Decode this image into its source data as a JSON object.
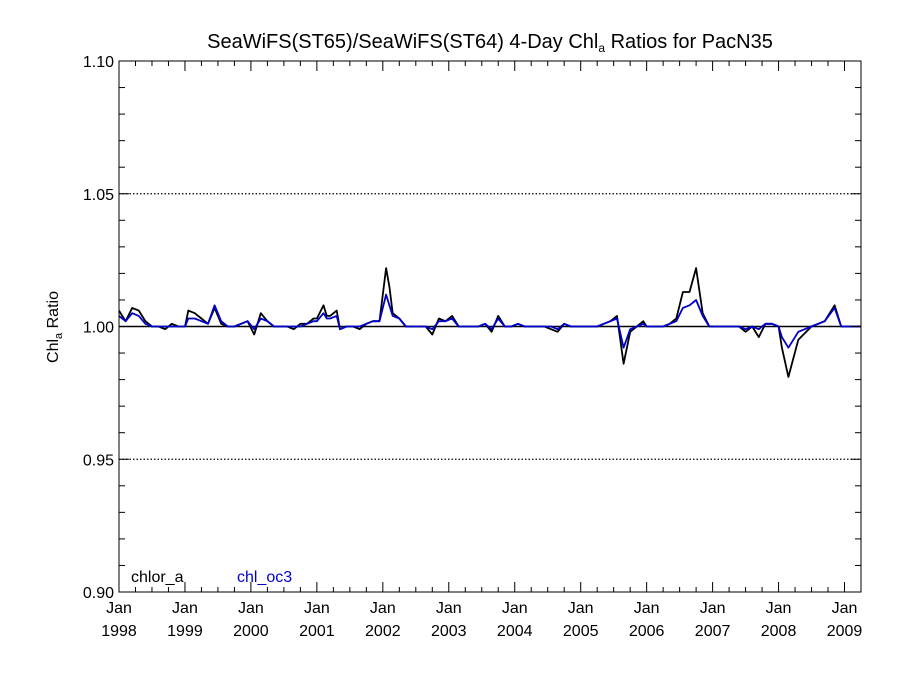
{
  "chart_data": {
    "type": "line",
    "title": {
      "prefix": "SeaWiFS(ST65)/SeaWiFS(ST64) 4-Day Chl",
      "subscript": "a",
      "suffix": " Ratios for PacN35"
    },
    "ylabel": {
      "prefix": "Chl",
      "subscript": "a",
      "suffix": " Ratio"
    },
    "ylim": [
      0.9,
      1.1
    ],
    "yticks": [
      "0.90",
      "0.95",
      "1.00",
      "1.05",
      "1.10"
    ],
    "ytick_values": [
      0.9,
      0.95,
      1.0,
      1.05,
      1.1
    ],
    "xlim": [
      1998.0,
      2009.25
    ],
    "xticks": [
      {
        "month": "Jan",
        "year": "1998",
        "value": 1998
      },
      {
        "month": "Jan",
        "year": "1999",
        "value": 1999
      },
      {
        "month": "Jan",
        "year": "2000",
        "value": 2000
      },
      {
        "month": "Jan",
        "year": "2001",
        "value": 2001
      },
      {
        "month": "Jan",
        "year": "2002",
        "value": 2002
      },
      {
        "month": "Jan",
        "year": "2003",
        "value": 2003
      },
      {
        "month": "Jan",
        "year": "2004",
        "value": 2004
      },
      {
        "month": "Jan",
        "year": "2005",
        "value": 2005
      },
      {
        "month": "Jan",
        "year": "2006",
        "value": 2006
      },
      {
        "month": "Jan",
        "year": "2007",
        "value": 2007
      },
      {
        "month": "Jan",
        "year": "2008",
        "value": 2008
      },
      {
        "month": "Jan",
        "year": "2009",
        "value": 2009
      }
    ],
    "dotted_gridlines": [
      0.95,
      1.05
    ],
    "reference_line": 1.0,
    "legend_placement": "bottom-left inside",
    "series": [
      {
        "name": "chlor_a",
        "color": "#000000",
        "x": [
          1998.0,
          1998.1,
          1998.2,
          1998.3,
          1998.4,
          1998.5,
          1998.6,
          1998.7,
          1998.8,
          1998.9,
          1999.0,
          1999.05,
          1999.15,
          1999.25,
          1999.35,
          1999.45,
          1999.55,
          1999.65,
          1999.75,
          1999.85,
          1999.95,
          2000.05,
          2000.15,
          2000.25,
          2000.35,
          2000.45,
          2000.55,
          2000.65,
          2000.75,
          2000.85,
          2000.95,
          2001.0,
          2001.1,
          2001.15,
          2001.2,
          2001.3,
          2001.35,
          2001.45,
          2001.55,
          2001.65,
          2001.75,
          2001.85,
          2001.95,
          2002.05,
          2002.1,
          2002.15,
          2002.25,
          2002.35,
          2002.45,
          2002.55,
          2002.65,
          2002.75,
          2002.85,
          2002.95,
          2003.05,
          2003.15,
          2003.25,
          2003.35,
          2003.45,
          2003.55,
          2003.65,
          2003.75,
          2003.85,
          2003.95,
          2004.05,
          2004.15,
          2004.25,
          2004.35,
          2004.45,
          2004.55,
          2004.65,
          2004.75,
          2004.85,
          2004.95,
          2005.05,
          2005.15,
          2005.25,
          2005.35,
          2005.45,
          2005.55,
          2005.65,
          2005.75,
          2005.85,
          2005.95,
          2006.0,
          2006.05,
          2006.15,
          2006.25,
          2006.35,
          2006.45,
          2006.55,
          2006.65,
          2006.75,
          2006.85,
          2006.95,
          2007.05,
          2007.1,
          2007.15,
          2007.2,
          2007.3,
          2007.4,
          2007.5,
          2007.6,
          2007.7,
          2007.8,
          2007.9,
          2008.0,
          2008.05,
          2008.15,
          2008.3,
          2008.5,
          2008.7,
          2008.85,
          2008.95,
          2009.0,
          2009.05,
          2009.15,
          2009.25
        ],
        "y": [
          1.006,
          1.002,
          1.007,
          1.006,
          1.002,
          1.0,
          1.0,
          0.999,
          1.001,
          1.0,
          1.0,
          1.006,
          1.005,
          1.003,
          1.001,
          1.007,
          1.001,
          1.0,
          1.0,
          1.001,
          1.002,
          0.997,
          1.005,
          1.002,
          1.0,
          1.0,
          1.0,
          0.999,
          1.001,
          1.001,
          1.003,
          1.003,
          1.008,
          1.004,
          1.004,
          1.006,
          0.999,
          1.0,
          1.0,
          0.999,
          1.001,
          1.002,
          1.002,
          1.022,
          1.015,
          1.005,
          1.003,
          1.0,
          1.0,
          1.0,
          1.0,
          0.997,
          1.003,
          1.002,
          1.004,
          1.0,
          1.0,
          1.0,
          1.0,
          1.001,
          0.998,
          1.004,
          1.0,
          1.0,
          1.001,
          1.0,
          1.0,
          1.0,
          1.0,
          0.999,
          0.998,
          1.001,
          1.0,
          1.0,
          1.0,
          1.0,
          1.0,
          1.001,
          1.002,
          1.004,
          0.986,
          0.998,
          1.0,
          1.002,
          1.0,
          1.0,
          1.0,
          1.0,
          1.001,
          1.003,
          1.013,
          1.013,
          1.022,
          1.005,
          1.0,
          1.0,
          1.0,
          1.0,
          1.0,
          1.0,
          1.0,
          0.998,
          1.0,
          0.996,
          1.001,
          1.001,
          1.0,
          0.992,
          0.981,
          0.995,
          1.0,
          1.002,
          1.008,
          1.0,
          1.0,
          1.0,
          1.0,
          1.0
        ]
      },
      {
        "name": "chl_oc3",
        "color": "#0000cc",
        "x": [
          1998.0,
          1998.1,
          1998.2,
          1998.3,
          1998.4,
          1998.5,
          1998.6,
          1998.7,
          1998.8,
          1998.9,
          1999.0,
          1999.05,
          1999.15,
          1999.25,
          1999.35,
          1999.45,
          1999.55,
          1999.65,
          1999.75,
          1999.85,
          1999.95,
          2000.05,
          2000.15,
          2000.25,
          2000.35,
          2000.45,
          2000.55,
          2000.65,
          2000.75,
          2000.85,
          2000.95,
          2001.0,
          2001.1,
          2001.15,
          2001.2,
          2001.3,
          2001.35,
          2001.45,
          2001.55,
          2001.65,
          2001.75,
          2001.85,
          2001.95,
          2002.05,
          2002.1,
          2002.15,
          2002.25,
          2002.35,
          2002.45,
          2002.55,
          2002.65,
          2002.75,
          2002.85,
          2002.95,
          2003.05,
          2003.15,
          2003.25,
          2003.35,
          2003.45,
          2003.55,
          2003.65,
          2003.75,
          2003.85,
          2003.95,
          2004.05,
          2004.15,
          2004.25,
          2004.35,
          2004.45,
          2004.55,
          2004.65,
          2004.75,
          2004.85,
          2004.95,
          2005.05,
          2005.15,
          2005.25,
          2005.35,
          2005.45,
          2005.55,
          2005.65,
          2005.75,
          2005.85,
          2005.95,
          2006.0,
          2006.05,
          2006.15,
          2006.25,
          2006.35,
          2006.45,
          2006.55,
          2006.65,
          2006.75,
          2006.85,
          2006.95,
          2007.05,
          2007.1,
          2007.15,
          2007.2,
          2007.3,
          2007.4,
          2007.5,
          2007.6,
          2007.7,
          2007.8,
          2007.9,
          2008.0,
          2008.05,
          2008.15,
          2008.3,
          2008.5,
          2008.7,
          2008.85,
          2008.95,
          2009.0,
          2009.05,
          2009.15,
          2009.25
        ],
        "y": [
          1.004,
          1.002,
          1.005,
          1.004,
          1.001,
          1.0,
          1.0,
          1.0,
          1.0,
          1.0,
          1.0,
          1.003,
          1.003,
          1.002,
          1.001,
          1.008,
          1.002,
          1.0,
          1.0,
          1.001,
          1.002,
          0.999,
          1.003,
          1.002,
          1.0,
          1.0,
          1.0,
          1.0,
          1.0,
          1.001,
          1.002,
          1.002,
          1.005,
          1.003,
          1.003,
          1.004,
          0.999,
          1.0,
          1.0,
          1.0,
          1.001,
          1.002,
          1.002,
          1.012,
          1.008,
          1.004,
          1.003,
          1.0,
          1.0,
          1.0,
          1.0,
          0.999,
          1.002,
          1.002,
          1.003,
          1.0,
          1.0,
          1.0,
          1.0,
          1.001,
          0.999,
          1.003,
          1.0,
          1.0,
          1.001,
          1.0,
          1.0,
          1.0,
          1.0,
          1.0,
          0.999,
          1.001,
          1.0,
          1.0,
          1.0,
          1.0,
          1.0,
          1.001,
          1.002,
          1.003,
          0.992,
          0.999,
          1.0,
          1.001,
          1.0,
          1.0,
          1.0,
          1.0,
          1.001,
          1.002,
          1.007,
          1.008,
          1.01,
          1.004,
          1.0,
          1.0,
          1.0,
          1.0,
          1.0,
          1.0,
          1.0,
          0.999,
          1.0,
          0.999,
          1.001,
          1.001,
          1.0,
          0.996,
          0.992,
          0.998,
          1.0,
          1.002,
          1.007,
          1.0,
          1.0,
          1.0,
          1.0,
          1.0
        ]
      }
    ]
  }
}
